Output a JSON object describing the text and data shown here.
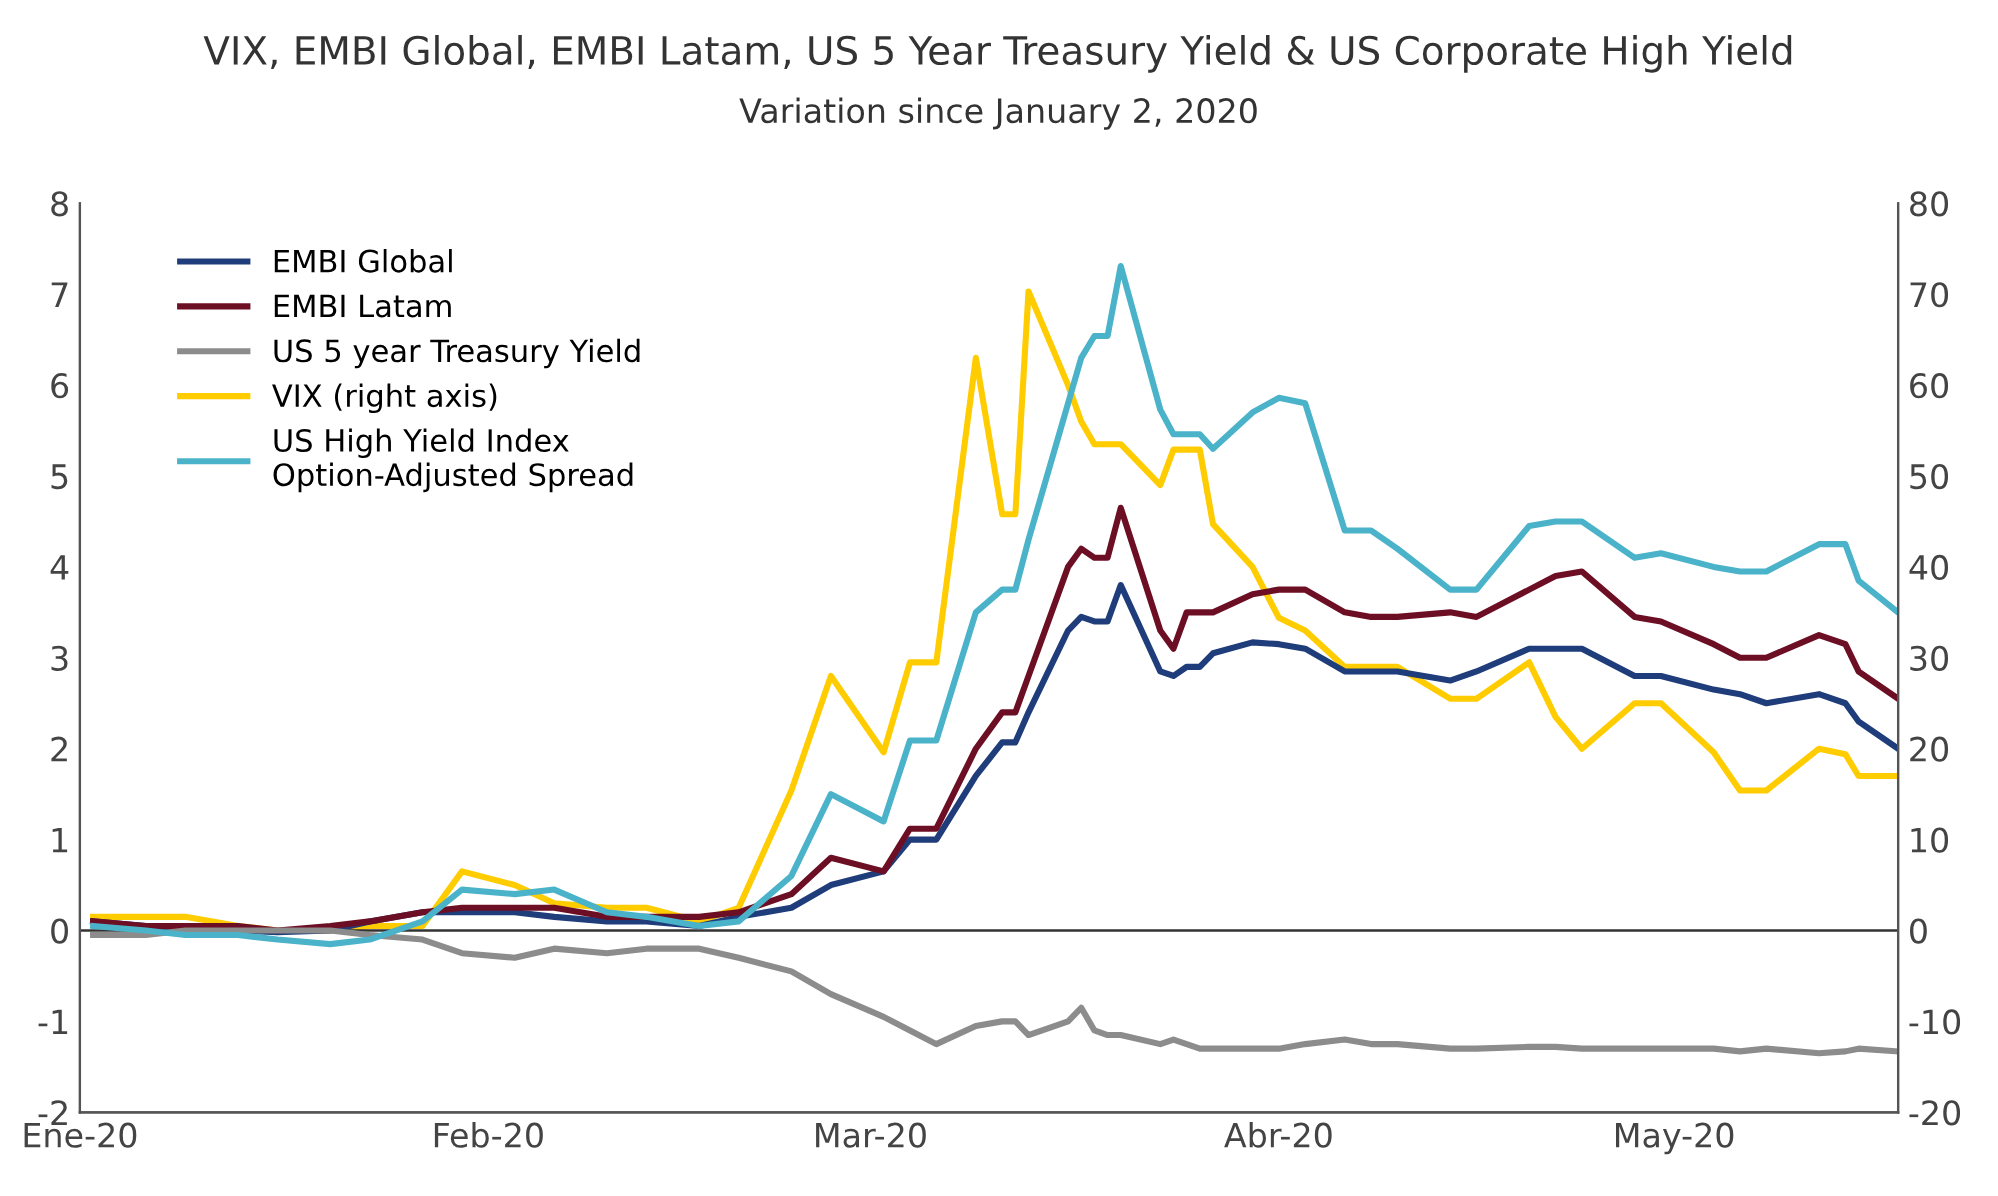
{
  "chart_data": {
    "type": "line",
    "title": "VIX, EMBI Global, EMBI Latam, US 5 Year Treasury Yield & US Corporate High Yield",
    "subtitle": "Variation since January 2, 2020",
    "x": [
      "2020-01-02",
      "2020-01-06",
      "2020-01-09",
      "2020-01-13",
      "2020-01-16",
      "2020-01-20",
      "2020-01-23",
      "2020-01-27",
      "2020-01-30",
      "2020-02-03",
      "2020-02-06",
      "2020-02-10",
      "2020-02-13",
      "2020-02-17",
      "2020-02-20",
      "2020-02-24",
      "2020-02-27",
      "2020-03-02",
      "2020-03-04",
      "2020-03-06",
      "2020-03-09",
      "2020-03-11",
      "2020-03-12",
      "2020-03-13",
      "2020-03-16",
      "2020-03-17",
      "2020-03-18",
      "2020-03-19",
      "2020-03-20",
      "2020-03-23",
      "2020-03-24",
      "2020-03-25",
      "2020-03-26",
      "2020-03-27",
      "2020-03-30",
      "2020-04-01",
      "2020-04-03",
      "2020-04-06",
      "2020-04-08",
      "2020-04-10",
      "2020-04-14",
      "2020-04-16",
      "2020-04-20",
      "2020-04-22",
      "2020-04-24",
      "2020-04-28",
      "2020-04-30",
      "2020-05-04",
      "2020-05-06",
      "2020-05-08",
      "2020-05-12",
      "2020-05-14",
      "2020-05-15",
      "2020-05-18"
    ],
    "series": [
      {
        "name": "EMBI Global",
        "color": "#1f3d7a",
        "values": [
          0.1,
          0.05,
          0.0,
          0.0,
          -0.02,
          0.0,
          0.1,
          0.2,
          0.2,
          0.2,
          0.15,
          0.1,
          0.1,
          0.05,
          0.15,
          0.25,
          0.5,
          0.65,
          1.0,
          1.0,
          1.7,
          2.07,
          2.07,
          2.4,
          3.3,
          3.45,
          3.4,
          3.4,
          3.8,
          2.85,
          2.8,
          2.9,
          2.9,
          3.05,
          3.17,
          3.15,
          3.1,
          2.85,
          2.85,
          2.85,
          2.75,
          2.85,
          3.1,
          3.1,
          3.1,
          2.8,
          2.8,
          2.65,
          2.6,
          2.5,
          2.6,
          2.5,
          2.3,
          2.0
        ]
      },
      {
        "name": "EMBI Latam",
        "color": "#6d0f24",
        "values": [
          0.1,
          0.05,
          0.05,
          0.05,
          0.0,
          0.05,
          0.1,
          0.2,
          0.25,
          0.25,
          0.25,
          0.15,
          0.15,
          0.15,
          0.2,
          0.4,
          0.8,
          0.65,
          1.12,
          1.12,
          2.0,
          2.4,
          2.4,
          2.8,
          4.0,
          4.2,
          4.1,
          4.1,
          4.65,
          3.3,
          3.1,
          3.5,
          3.5,
          3.5,
          3.7,
          3.75,
          3.75,
          3.5,
          3.45,
          3.45,
          3.5,
          3.45,
          3.75,
          3.9,
          3.95,
          3.45,
          3.4,
          3.15,
          3.0,
          3.0,
          3.25,
          3.15,
          2.85,
          2.55
        ]
      },
      {
        "name": "US 5 year Treasury Yield",
        "color": "#8c8c8c",
        "values": [
          -0.05,
          -0.05,
          0.0,
          0.0,
          0.0,
          0.0,
          -0.05,
          -0.1,
          -0.25,
          -0.3,
          -0.2,
          -0.25,
          -0.2,
          -0.2,
          -0.3,
          -0.45,
          -0.7,
          -0.95,
          -1.1,
          -1.25,
          -1.05,
          -1.0,
          -1.0,
          -1.15,
          -1.0,
          -0.85,
          -1.1,
          -1.15,
          -1.15,
          -1.25,
          -1.2,
          -1.25,
          -1.3,
          -1.3,
          -1.3,
          -1.3,
          -1.25,
          -1.2,
          -1.25,
          -1.25,
          -1.3,
          -1.3,
          -1.28,
          -1.28,
          -1.3,
          -1.3,
          -1.3,
          -1.3,
          -1.33,
          -1.3,
          -1.35,
          -1.33,
          -1.3,
          -1.33
        ]
      },
      {
        "name": "VIX (right axis)",
        "color": "#ffcc00",
        "axis": "y2",
        "values": [
          1.5,
          1.5,
          1.5,
          0.5,
          0.0,
          0.0,
          0.5,
          0.5,
          6.5,
          5.0,
          3.0,
          2.5,
          2.5,
          1.0,
          2.5,
          15.4,
          28,
          19.6,
          29.5,
          29.5,
          63,
          45.8,
          45.8,
          70.3,
          60,
          56,
          53.5,
          53.5,
          53.5,
          49,
          52.9,
          52.9,
          52.9,
          44.7,
          40,
          34.4,
          33,
          29,
          29,
          29,
          25.5,
          25.5,
          29.5,
          23.5,
          20,
          25,
          25,
          19.6,
          15.4,
          15.4,
          20,
          19.4,
          17,
          17
        ]
      },
      {
        "name": "US High Yield Index\nOption-Adjusted Spread",
        "color": "#4bb3c9",
        "values": [
          0.05,
          0.0,
          -0.05,
          -0.05,
          -0.1,
          -0.15,
          -0.1,
          0.1,
          0.45,
          0.4,
          0.45,
          0.2,
          0.15,
          0.05,
          0.1,
          0.6,
          1.5,
          1.2,
          2.09,
          2.09,
          3.5,
          3.75,
          3.75,
          4.3,
          5.8,
          6.3,
          6.54,
          6.54,
          7.31,
          5.73,
          5.46,
          5.46,
          5.46,
          5.3,
          5.7,
          5.86,
          5.8,
          4.4,
          4.4,
          4.2,
          3.75,
          3.75,
          4.45,
          4.5,
          4.5,
          4.1,
          4.15,
          4.0,
          3.95,
          3.95,
          4.25,
          4.25,
          3.85,
          3.5
        ]
      }
    ],
    "xlim": [
      "2020-01-01",
      "2020-05-18"
    ],
    "xticks": [
      {
        "value": "2020-01-01",
        "label": "Ene-20"
      },
      {
        "value": "2020-02-01",
        "label": "Feb-20"
      },
      {
        "value": "2020-03-01",
        "label": "Mar-20"
      },
      {
        "value": "2020-04-01",
        "label": "Abr-20"
      },
      {
        "value": "2020-05-01",
        "label": "May-20"
      }
    ],
    "ylim": [
      -2,
      8
    ],
    "yticks": [
      -2,
      -1,
      0,
      1,
      2,
      3,
      4,
      5,
      6,
      7,
      8
    ],
    "y2lim": [
      -20,
      80
    ],
    "y2ticks": [
      -20,
      -10,
      0,
      10,
      20,
      30,
      40,
      50,
      60,
      70,
      80
    ],
    "ref_lines": [
      {
        "axis": "y",
        "value": 0,
        "color": "#333333"
      }
    ],
    "legend": "top left",
    "grid": false,
    "line_style": "solid",
    "marker": "none"
  }
}
